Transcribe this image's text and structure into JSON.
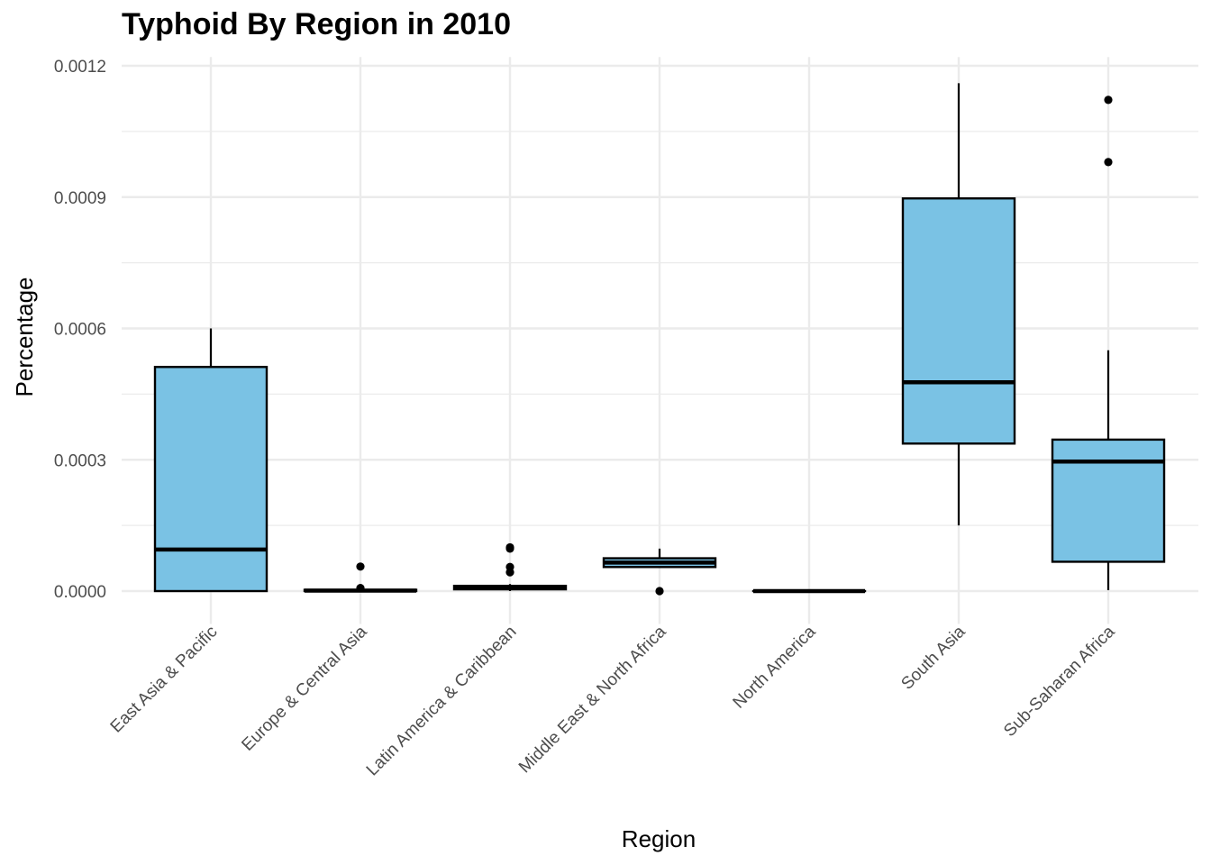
{
  "chart_data": {
    "type": "box",
    "title": "Typhoid By Region in 2010",
    "xlabel": "Region",
    "ylabel": "Percentage",
    "ylim": [
      -7.5e-05,
      0.00122
    ],
    "yticks": [
      {
        "value": 0.0,
        "label": "0.0000"
      },
      {
        "value": 0.0003,
        "label": "0.0003"
      },
      {
        "value": 0.0006,
        "label": "0.0006"
      },
      {
        "value": 0.0009,
        "label": "0.0009"
      },
      {
        "value": 0.0012,
        "label": "0.0012"
      }
    ],
    "ygrid_minor": [
      0.00015,
      0.00045,
      0.00075,
      0.00105
    ],
    "grid": true,
    "box_fill": "#7ac2e4",
    "box_stroke": "#000000",
    "grid_color": "#ebebeb",
    "categories": [
      "East Asia & Pacific",
      "Europe & Central Asia",
      "Latin America & Caribbean",
      "Middle East & North Africa",
      "North America",
      "South Asia",
      "Sub-Saharan Africa"
    ],
    "boxes": [
      {
        "whisker_low": 0.0,
        "q1": 0.0,
        "median": 9.5e-05,
        "q3": 0.000512,
        "whisker_high": 0.0006,
        "outliers": []
      },
      {
        "whisker_low": 0.0,
        "q1": 0.0,
        "median": 1e-06,
        "q3": 3e-06,
        "whisker_high": 5e-06,
        "outliers": [
          5.6e-05,
          7e-06
        ]
      },
      {
        "whisker_low": 0.0,
        "q1": 4e-06,
        "median": 8e-06,
        "q3": 1.2e-05,
        "whisker_high": 1.6e-05,
        "outliers": [
          0.0001,
          9.7e-05,
          5.5e-05,
          4.3e-05
        ]
      },
      {
        "whisker_low": 5.5e-05,
        "q1": 5.5e-05,
        "median": 6.5e-05,
        "q3": 7.5e-05,
        "whisker_high": 9.7e-05,
        "outliers": [
          0.0
        ]
      },
      {
        "whisker_low": 0.0,
        "q1": 0.0,
        "median": 0.0,
        "q3": 0.0,
        "whisker_high": 0.0,
        "outliers": []
      },
      {
        "whisker_low": 0.00015,
        "q1": 0.000337,
        "median": 0.000477,
        "q3": 0.000897,
        "whisker_high": 0.00116,
        "outliers": []
      },
      {
        "whisker_low": 2e-06,
        "q1": 6.7e-05,
        "median": 0.000296,
        "q3": 0.000346,
        "whisker_high": 0.00055,
        "outliers": [
          0.001122,
          0.00098
        ]
      }
    ]
  }
}
